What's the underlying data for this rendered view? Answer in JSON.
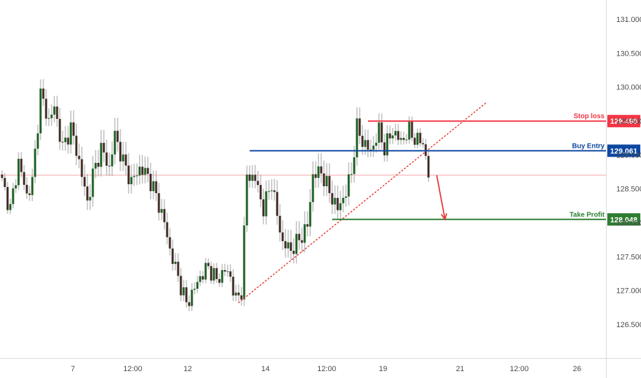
{
  "chart_data": {
    "type": "candlestick",
    "y_axis": {
      "position": "right",
      "ylim": [
        126.3,
        131.22
      ],
      "ticks": [
        "131.000",
        "130.500",
        "130.000",
        "129.500",
        "129.000",
        "128.500",
        "128.000",
        "127.500",
        "127.000",
        "126.500"
      ]
    },
    "x_axis": {
      "ticks": [
        "7",
        "12:00",
        "12",
        "14",
        "12:00",
        "19",
        "21",
        "12:00",
        "26"
      ]
    },
    "price_line": 128.7,
    "ohlc_keypoints": [
      [
        0,
        128.6
      ],
      [
        3,
        128.2
      ],
      [
        6,
        128.9
      ],
      [
        9,
        128.4
      ],
      [
        11,
        128.6
      ],
      [
        14,
        129.9
      ],
      [
        17,
        129.5
      ],
      [
        19,
        129.7
      ],
      [
        22,
        129.1
      ],
      [
        25,
        129.4
      ],
      [
        28,
        128.9
      ],
      [
        31,
        128.3
      ],
      [
        33,
        128.7
      ],
      [
        36,
        129.1
      ],
      [
        39,
        128.8
      ],
      [
        41,
        129.3
      ],
      [
        44,
        128.9
      ],
      [
        47,
        128.6
      ],
      [
        50,
        128.8
      ],
      [
        53,
        128.7
      ],
      [
        56,
        128.4
      ],
      [
        59,
        128.0
      ],
      [
        61,
        127.6
      ],
      [
        64,
        127.2
      ],
      [
        67,
        126.8
      ],
      [
        69,
        126.95
      ],
      [
        72,
        127.2
      ],
      [
        75,
        127.35
      ],
      [
        78,
        127.15
      ],
      [
        81,
        127.3
      ],
      [
        83,
        127.2
      ],
      [
        85,
        126.85
      ],
      [
        87,
        127.0
      ],
      [
        89,
        128.7
      ],
      [
        92,
        128.65
      ],
      [
        95,
        128.2
      ],
      [
        98,
        128.6
      ],
      [
        100,
        128.1
      ],
      [
        102,
        127.7
      ],
      [
        105,
        127.6
      ],
      [
        108,
        127.75
      ],
      [
        111,
        127.95
      ],
      [
        113,
        128.7
      ],
      [
        116,
        128.75
      ],
      [
        119,
        128.45
      ],
      [
        122,
        128.2
      ],
      [
        125,
        128.45
      ],
      [
        127,
        128.75
      ],
      [
        129,
        129.4
      ],
      [
        131,
        129.2
      ],
      [
        134,
        129.05
      ],
      [
        137,
        129.35
      ],
      [
        139,
        129.1
      ],
      [
        142,
        129.35
      ],
      [
        145,
        129.2
      ],
      [
        148,
        129.35
      ],
      [
        151,
        129.2
      ],
      [
        153,
        129.2
      ],
      [
        154,
        128.95
      ],
      [
        155,
        128.7
      ]
    ],
    "levels": [
      {
        "name": "Stop loss",
        "value": 129.498,
        "value_label": "129.498",
        "color": "#f23645",
        "x_start_index": 133
      },
      {
        "name": "Buy Entry",
        "value": 129.061,
        "value_label": "129.061",
        "color": "#0d47a1",
        "x_start_index": 90
      },
      {
        "name": "Take Profit",
        "value": 128.048,
        "value_label": "128.048",
        "color": "#2e7d32",
        "x_start_index": 120
      }
    ],
    "trendline": {
      "from": [
        86,
        126.82
      ],
      "to": [
        176,
        129.77
      ],
      "color": "#e53935",
      "style": "dotted"
    },
    "arrow": {
      "from": [
        158,
        128.7
      ],
      "to": [
        161,
        128.05
      ],
      "color": "#e53935"
    }
  }
}
